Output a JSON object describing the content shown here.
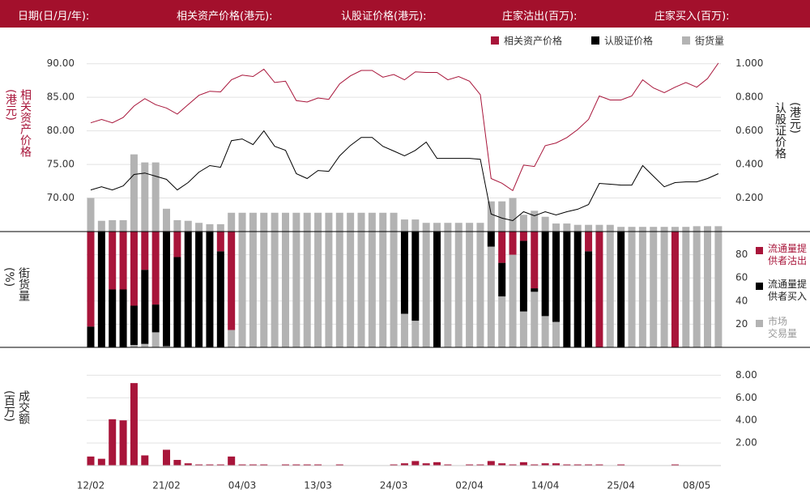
{
  "header": {
    "labels": [
      "日期(日/月/年):",
      "相关资产价格(港元):",
      "认股证价格(港元):",
      "庄家沽出(百万):",
      "庄家买入(百万):"
    ]
  },
  "chart_data": [
    {
      "type": "combo",
      "grid": true,
      "legend": "top-right",
      "ylabel": "相关资产价格\n(港元)",
      "y2label": "认股证价格\n(港元)",
      "ylim": [
        65,
        92.5
      ],
      "yticks": [
        {
          "value": 70,
          "label": "70.00"
        },
        {
          "value": 75,
          "label": "75.00"
        },
        {
          "value": 80,
          "label": "80.00"
        },
        {
          "value": 85,
          "label": "85.00"
        },
        {
          "value": 90,
          "label": "90.00"
        }
      ],
      "y2lim": [
        0,
        1.1
      ],
      "y2ticks": [
        {
          "value": 0.2,
          "label": "0.200"
        },
        {
          "value": 0.4,
          "label": "0.400"
        },
        {
          "value": 0.6,
          "label": "0.600"
        },
        {
          "value": 0.8,
          "label": "0.800"
        },
        {
          "value": 1,
          "label": "1.000"
        }
      ],
      "series": [
        {
          "name": "相关资产价格",
          "color": "#a8153a",
          "axis": "y",
          "kind": "line",
          "values": [
            81.2,
            81.7,
            81.2,
            82.0,
            83.7,
            84.8,
            83.9,
            83.4,
            82.5,
            83.9,
            85.3,
            85.9,
            85.8,
            87.6,
            88.3,
            88.1,
            89.2,
            87.2,
            87.4,
            84.5,
            84.3,
            84.9,
            84.7,
            87.0,
            88.2,
            89.0,
            89.0,
            88.0,
            88.4,
            87.6,
            88.8,
            88.7,
            88.7,
            87.6,
            88.1,
            87.4,
            85.4,
            72.9,
            72.2,
            71.1,
            74.9,
            74.7,
            77.8,
            78.2,
            79.0,
            80.2,
            81.7,
            85.2,
            84.6,
            84.6,
            85.2,
            87.6,
            86.4,
            85.7,
            86.5,
            87.2,
            86.5,
            87.8,
            90.1
          ]
        },
        {
          "name": "认股证价格",
          "color": "#000000",
          "axis": "y2",
          "kind": "line",
          "values": [
            0.248,
            0.267,
            0.248,
            0.272,
            0.34,
            0.349,
            0.33,
            0.311,
            0.248,
            0.292,
            0.354,
            0.393,
            0.383,
            0.542,
            0.552,
            0.518,
            0.6,
            0.508,
            0.484,
            0.345,
            0.316,
            0.364,
            0.359,
            0.451,
            0.513,
            0.561,
            0.561,
            0.508,
            0.48,
            0.451,
            0.484,
            0.533,
            0.436,
            0.436,
            0.436,
            0.436,
            0.431,
            0.104,
            0.08,
            0.065,
            0.118,
            0.094,
            0.118,
            0.099,
            0.118,
            0.133,
            0.161,
            0.287,
            0.282,
            0.277,
            0.277,
            0.393,
            0.33,
            0.267,
            0.292,
            0.296,
            0.296,
            0.316,
            0.345
          ]
        },
        {
          "name": "街货量",
          "color": "#b3b3b3",
          "axis": "y",
          "kind": "bar",
          "values": [
            70.0,
            66.6,
            66.7,
            66.7,
            76.5,
            75.3,
            75.3,
            68.4,
            66.7,
            66.6,
            66.3,
            66.1,
            66.1,
            67.8,
            67.8,
            67.8,
            67.8,
            67.8,
            67.8,
            67.8,
            67.8,
            67.8,
            67.8,
            67.8,
            67.8,
            67.8,
            67.8,
            67.8,
            67.8,
            66.8,
            66.8,
            66.3,
            66.3,
            66.3,
            66.3,
            66.3,
            66.3,
            69.5,
            69.5,
            70.0,
            67.5,
            68.1,
            67.2,
            66.2,
            66.2,
            66.0,
            66.0,
            66.0,
            66.0,
            65.7,
            65.7,
            65.7,
            65.7,
            65.7,
            65.7,
            65.7,
            65.8,
            65.8,
            65.8
          ]
        }
      ]
    },
    {
      "type": "stacked_bar",
      "grid": true,
      "legend": "right",
      "y_axis": "right",
      "ylabel": "街货量\n(%)",
      "ylim": [
        0,
        100
      ],
      "yticks": [
        20,
        40,
        60,
        80
      ],
      "series": [
        {
          "name": "市场\n交易量",
          "color": "#b3b3b3",
          "values": [
            0,
            0,
            0,
            0,
            2,
            3,
            13,
            1,
            0,
            0,
            0,
            0,
            0,
            15,
            100,
            100,
            100,
            100,
            100,
            100,
            100,
            100,
            100,
            100,
            100,
            100,
            100,
            100,
            100,
            29,
            23,
            100,
            0,
            100,
            100,
            100,
            100,
            87,
            44,
            80,
            31,
            48,
            27,
            22,
            0,
            0,
            0,
            0,
            100,
            0,
            100,
            100,
            100,
            100,
            0,
            100,
            100,
            100,
            100
          ]
        },
        {
          "name": "流通量提\n供者买入",
          "color": "#000000",
          "values": [
            18,
            100,
            50,
            50,
            34,
            64,
            24,
            99,
            78,
            100,
            100,
            100,
            83,
            0,
            0,
            0,
            0,
            0,
            0,
            0,
            0,
            0,
            0,
            0,
            0,
            0,
            0,
            0,
            0,
            71,
            77,
            0,
            100,
            0,
            0,
            0,
            0,
            13,
            29,
            0,
            61,
            3,
            73,
            78,
            100,
            100,
            83,
            0,
            0,
            100,
            0,
            0,
            0,
            0,
            0,
            0,
            0,
            0,
            0
          ]
        },
        {
          "name": "流通量提\n供者沽出",
          "color": "#a8153a",
          "values": [
            82,
            0,
            50,
            50,
            64,
            33,
            63,
            0,
            22,
            0,
            0,
            0,
            17,
            85,
            0,
            0,
            0,
            0,
            0,
            0,
            0,
            0,
            0,
            0,
            0,
            0,
            0,
            0,
            0,
            0,
            0,
            0,
            0,
            0,
            0,
            0,
            0,
            0,
            27,
            20,
            8,
            49,
            0,
            0,
            0,
            0,
            17,
            100,
            0,
            0,
            0,
            0,
            0,
            0,
            100,
            0,
            0,
            0,
            0
          ]
        }
      ]
    },
    {
      "type": "bar",
      "grid": true,
      "y_axis": "right",
      "color": "#a8153a",
      "ylabel": "成交额\n(百万)",
      "ylim": [
        0,
        8.6
      ],
      "yticks": [
        {
          "value": 2,
          "label": "2.00"
        },
        {
          "value": 4,
          "label": "4.00"
        },
        {
          "value": 6,
          "label": "6.00"
        },
        {
          "value": 8,
          "label": "8.00"
        }
      ],
      "categories": [
        "12/02",
        null,
        null,
        null,
        null,
        null,
        null,
        "21/02",
        null,
        null,
        null,
        null,
        null,
        null,
        "04/03",
        null,
        null,
        null,
        null,
        null,
        null,
        "13/03",
        null,
        null,
        null,
        null,
        null,
        null,
        "24/03",
        null,
        null,
        null,
        null,
        null,
        null,
        "02/04",
        null,
        null,
        null,
        null,
        null,
        null,
        "14/04",
        null,
        null,
        null,
        null,
        null,
        null,
        "25/04",
        null,
        null,
        null,
        null,
        null,
        null,
        "08/05",
        null,
        null
      ],
      "values": [
        0.8,
        0.6,
        4.1,
        4.0,
        7.3,
        0.9,
        0,
        1.4,
        0.5,
        0.2,
        0.1,
        0.1,
        0.1,
        0.8,
        0.1,
        0.1,
        0.1,
        0,
        0.1,
        0.1,
        0.1,
        0.1,
        0,
        0.1,
        0,
        0,
        0,
        0,
        0.1,
        0.2,
        0.4,
        0.2,
        0.3,
        0.1,
        0,
        0.1,
        0.1,
        0.4,
        0.2,
        0.1,
        0.3,
        0.1,
        0.2,
        0.2,
        0.1,
        0.1,
        0.1,
        0.1,
        0,
        0.1,
        0,
        0,
        0,
        0,
        0.1,
        0,
        0,
        0,
        0
      ]
    }
  ]
}
